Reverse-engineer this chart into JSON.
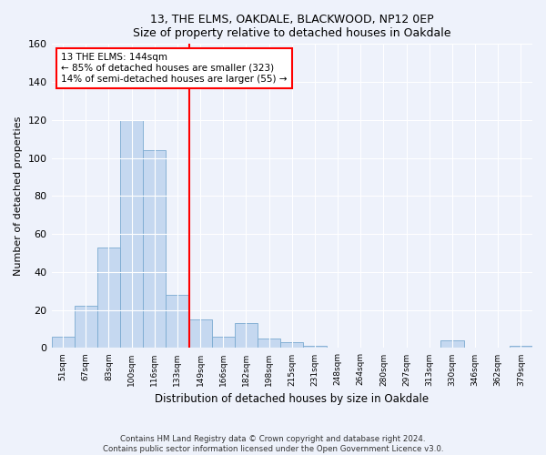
{
  "title1": "13, THE ELMS, OAKDALE, BLACKWOOD, NP12 0EP",
  "title2": "Size of property relative to detached houses in Oakdale",
  "xlabel": "Distribution of detached houses by size in Oakdale",
  "ylabel": "Number of detached properties",
  "categories": [
    "51sqm",
    "67sqm",
    "83sqm",
    "100sqm",
    "116sqm",
    "133sqm",
    "149sqm",
    "166sqm",
    "182sqm",
    "198sqm",
    "215sqm",
    "231sqm",
    "248sqm",
    "264sqm",
    "280sqm",
    "297sqm",
    "313sqm",
    "330sqm",
    "346sqm",
    "362sqm",
    "379sqm"
  ],
  "values": [
    6,
    22,
    53,
    120,
    104,
    28,
    15,
    6,
    13,
    5,
    3,
    1,
    0,
    0,
    0,
    0,
    0,
    4,
    0,
    0,
    1
  ],
  "bar_color": "#c5d8f0",
  "bar_edgecolor": "#7aaad0",
  "vline_color": "red",
  "vline_index": 6,
  "ylim": [
    0,
    160
  ],
  "yticks": [
    0,
    20,
    40,
    60,
    80,
    100,
    120,
    140,
    160
  ],
  "annotation_title": "13 THE ELMS: 144sqm",
  "annotation_line1": "← 85% of detached houses are smaller (323)",
  "annotation_line2": "14% of semi-detached houses are larger (55) →",
  "footer1": "Contains HM Land Registry data © Crown copyright and database right 2024.",
  "footer2": "Contains public sector information licensed under the Open Government Licence v3.0.",
  "bg_color": "#eef2fb",
  "plot_bg_color": "#eef2fb"
}
